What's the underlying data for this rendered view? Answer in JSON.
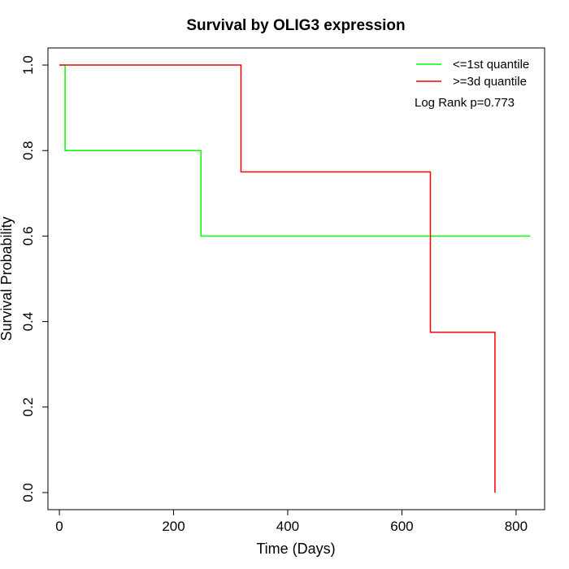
{
  "chart_data": {
    "type": "line",
    "title": "Survival by OLIG3 expression",
    "xlabel": "Time (Days)",
    "ylabel": "Survival Probability",
    "xlim": [
      -20,
      850
    ],
    "ylim": [
      -0.04,
      1.04
    ],
    "x_ticks": [
      0,
      200,
      400,
      600,
      800
    ],
    "x_tick_labels": [
      "0",
      "200",
      "400",
      "600",
      "800"
    ],
    "y_ticks": [
      0.0,
      0.2,
      0.4,
      0.6,
      0.8,
      1.0
    ],
    "y_tick_labels": [
      "0.0",
      "0.2",
      "0.4",
      "0.6",
      "0.8",
      "1.0"
    ],
    "grid": false,
    "legend_position": "top-right",
    "annotation": "Log Rank p=0.773",
    "series": [
      {
        "name": "<=1st quantile",
        "color": "#00ff00",
        "step": true,
        "x": [
          0,
          10,
          10,
          248,
          248,
          825
        ],
        "y": [
          1.0,
          1.0,
          0.8,
          0.8,
          0.6,
          0.6
        ]
      },
      {
        "name": ">=3d quantile",
        "color": "#ff0000",
        "step": true,
        "x": [
          0,
          318,
          318,
          650,
          650,
          763,
          763
        ],
        "y": [
          1.0,
          1.0,
          0.75,
          0.75,
          0.375,
          0.375,
          0.0
        ]
      }
    ]
  }
}
